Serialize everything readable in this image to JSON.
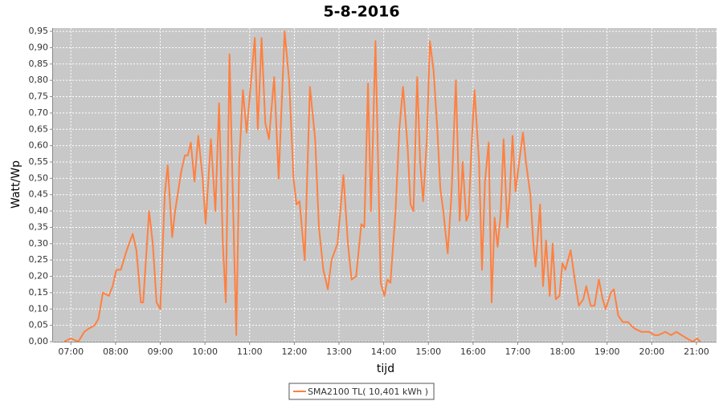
{
  "chart_data": {
    "type": "line",
    "title": "5-8-2016",
    "x_label": "tijd",
    "y_label": "Watt/Wp",
    "x": [
      "06:51",
      "07:00",
      "07:10",
      "07:18",
      "07:24",
      "07:32",
      "07:37",
      "07:43",
      "07:51",
      "07:56",
      "08:01",
      "08:07",
      "08:15",
      "08:23",
      "08:28",
      "08:34",
      "08:37",
      "08:45",
      "08:50",
      "08:55",
      "09:00",
      "09:06",
      "09:10",
      "09:16",
      "09:20",
      "09:28",
      "09:33",
      "09:37",
      "09:41",
      "09:46",
      "09:51",
      "09:57",
      "10:01",
      "10:08",
      "10:14",
      "10:19",
      "10:24",
      "10:28",
      "10:33",
      "10:38",
      "10:42",
      "10:46",
      "10:51",
      "10:56",
      "11:02",
      "11:07",
      "11:11",
      "11:16",
      "11:21",
      "11:26",
      "11:33",
      "11:39",
      "11:47",
      "11:53",
      "11:59",
      "12:03",
      "12:07",
      "12:14",
      "12:21",
      "12:28",
      "12:33",
      "12:39",
      "12:45",
      "12:50",
      "12:58",
      "13:06",
      "13:12",
      "13:17",
      "13:23",
      "13:30",
      "13:34",
      "13:39",
      "13:43",
      "13:49",
      "13:53",
      "13:56",
      "14:01",
      "14:05",
      "14:09",
      "14:16",
      "14:21",
      "14:26",
      "14:32",
      "14:36",
      "14:40",
      "14:45",
      "14:49",
      "14:53",
      "14:58",
      "15:02",
      "15:07",
      "15:12",
      "15:16",
      "15:20",
      "15:26",
      "15:31",
      "15:37",
      "15:42",
      "15:46",
      "15:51",
      "15:54",
      "15:58",
      "16:02",
      "16:08",
      "16:12",
      "16:16",
      "16:21",
      "16:25",
      "16:29",
      "16:33",
      "16:37",
      "16:41",
      "16:46",
      "16:49",
      "16:53",
      "16:57",
      "17:02",
      "17:07",
      "17:11",
      "17:17",
      "17:21",
      "17:24",
      "17:30",
      "17:34",
      "17:38",
      "17:43",
      "17:47",
      "17:51",
      "17:56",
      "18:00",
      "18:04",
      "18:11",
      "18:16",
      "18:22",
      "18:28",
      "18:32",
      "18:38",
      "18:43",
      "18:49",
      "18:54",
      "18:58",
      "19:05",
      "19:09",
      "19:15",
      "19:21",
      "19:28",
      "19:32",
      "19:37",
      "19:46",
      "19:56",
      "20:04",
      "20:09",
      "20:18",
      "20:26",
      "20:33",
      "20:40",
      "20:47",
      "20:55",
      "21:01",
      "21:05"
    ],
    "series": [
      {
        "name": "SMA2100 TL( 10,401 kWh )",
        "color": "#ff8040",
        "values": [
          0.0,
          0.01,
          0.0,
          0.03,
          0.04,
          0.05,
          0.07,
          0.15,
          0.14,
          0.17,
          0.22,
          0.22,
          0.28,
          0.33,
          0.28,
          0.12,
          0.12,
          0.4,
          0.3,
          0.12,
          0.1,
          0.45,
          0.54,
          0.32,
          0.4,
          0.52,
          0.57,
          0.57,
          0.61,
          0.49,
          0.63,
          0.5,
          0.36,
          0.62,
          0.4,
          0.73,
          0.3,
          0.12,
          0.88,
          0.4,
          0.02,
          0.55,
          0.77,
          0.64,
          0.8,
          0.93,
          0.65,
          0.93,
          0.67,
          0.62,
          0.81,
          0.5,
          0.95,
          0.8,
          0.5,
          0.42,
          0.43,
          0.25,
          0.78,
          0.62,
          0.35,
          0.22,
          0.16,
          0.25,
          0.3,
          0.51,
          0.3,
          0.19,
          0.2,
          0.36,
          0.35,
          0.79,
          0.4,
          0.92,
          0.5,
          0.18,
          0.14,
          0.19,
          0.18,
          0.4,
          0.65,
          0.78,
          0.6,
          0.42,
          0.4,
          0.81,
          0.55,
          0.43,
          0.62,
          0.92,
          0.83,
          0.65,
          0.47,
          0.4,
          0.27,
          0.45,
          0.8,
          0.37,
          0.55,
          0.37,
          0.39,
          0.6,
          0.77,
          0.55,
          0.22,
          0.49,
          0.61,
          0.12,
          0.38,
          0.29,
          0.39,
          0.62,
          0.35,
          0.44,
          0.63,
          0.46,
          0.55,
          0.64,
          0.55,
          0.45,
          0.3,
          0.23,
          0.42,
          0.17,
          0.31,
          0.14,
          0.3,
          0.13,
          0.14,
          0.24,
          0.22,
          0.28,
          0.2,
          0.11,
          0.13,
          0.17,
          0.11,
          0.11,
          0.19,
          0.13,
          0.1,
          0.15,
          0.16,
          0.08,
          0.06,
          0.06,
          0.05,
          0.04,
          0.03,
          0.03,
          0.02,
          0.02,
          0.03,
          0.02,
          0.03,
          0.02,
          0.01,
          0.0,
          0.01,
          0.0
        ]
      }
    ],
    "xlim": [
      "06:36",
      "21:27"
    ],
    "xticks": [
      "07:00",
      "08:00",
      "09:00",
      "10:00",
      "11:00",
      "12:00",
      "13:00",
      "14:00",
      "15:00",
      "16:00",
      "17:00",
      "18:00",
      "19:00",
      "20:00",
      "21:00"
    ],
    "ylim": [
      0,
      0.96
    ],
    "yticks": [
      {
        "value": 0,
        "label": "0,00"
      },
      {
        "value": 0.05,
        "label": "0,05"
      },
      {
        "value": 0.1,
        "label": "0,10"
      },
      {
        "value": 0.15,
        "label": "0,15"
      },
      {
        "value": 0.2,
        "label": "0,20"
      },
      {
        "value": 0.25,
        "label": "0,25"
      },
      {
        "value": 0.3,
        "label": "0,30"
      },
      {
        "value": 0.35,
        "label": "0,35"
      },
      {
        "value": 0.4,
        "label": "0,40"
      },
      {
        "value": 0.45,
        "label": "0,45"
      },
      {
        "value": 0.5,
        "label": "0,50"
      },
      {
        "value": 0.55,
        "label": "0,55"
      },
      {
        "value": 0.6,
        "label": "0,60"
      },
      {
        "value": 0.65,
        "label": "0,65"
      },
      {
        "value": 0.7,
        "label": "0,70"
      },
      {
        "value": 0.75,
        "label": "0,75"
      },
      {
        "value": 0.8,
        "label": "0,80"
      },
      {
        "value": 0.85,
        "label": "0,85"
      },
      {
        "value": 0.9,
        "label": "0,90"
      },
      {
        "value": 0.95,
        "label": "0,95"
      }
    ],
    "grid": true,
    "legend": "bottom"
  }
}
